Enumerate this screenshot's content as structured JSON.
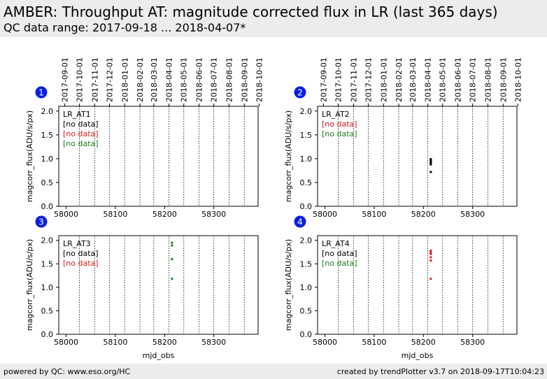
{
  "header": {
    "title": "AMBER: Throughput AT: magnitude corrected flux in LR (last 365 days)",
    "subtitle": "QC data range: 2017-09-18 ... 2018-04-07*"
  },
  "footer": {
    "left": "powered by QC: www.eso.org/HC",
    "right": "created by trendPlotter v3.7 on 2018-09-17T10:04:23"
  },
  "colors": {
    "black": "#000000",
    "red": "#e41a1c",
    "green": "#1a7f1a",
    "badge": "#0a1fe6"
  },
  "chart_data": [
    {
      "type": "scatter",
      "panel": "1",
      "title": "LR_AT1",
      "xlabel": "",
      "ylabel": "magcorr_flux(ADU/s/px)",
      "xlim": [
        57985,
        58390
      ],
      "ylim": [
        0,
        2.1
      ],
      "x_ticks": [
        58000,
        58100,
        58200,
        58300
      ],
      "y_ticks": [
        0.0,
        0.5,
        1.0,
        1.5,
        2.0
      ],
      "date_ticks": [
        "2017-09-01",
        "2017-10-01",
        "2017-11-01",
        "2017-12-01",
        "2018-01-01",
        "2018-02-01",
        "2018-03-01",
        "2018-04-01",
        "2018-05-01",
        "2018-06-01",
        "2018-07-01",
        "2018-08-01",
        "2018-09-01",
        "2018-10-01"
      ],
      "legend": [
        {
          "text": "[no data]",
          "color": "black"
        },
        {
          "text": "[no data]",
          "color": "red"
        },
        {
          "text": "[no data]",
          "color": "green"
        }
      ],
      "series": [],
      "grid": "vertical dotted lines at month boundaries"
    },
    {
      "type": "scatter",
      "panel": "2",
      "title": "LR_AT2",
      "xlabel": "",
      "ylabel": "magcorr_flux(ADU/s/px)",
      "xlim": [
        57985,
        58390
      ],
      "ylim": [
        0,
        2.1
      ],
      "x_ticks": [
        58000,
        58100,
        58200,
        58300
      ],
      "y_ticks": [
        0.0,
        0.5,
        1.0,
        1.5,
        2.0
      ],
      "date_ticks": [
        "2017-09-01",
        "2017-10-01",
        "2017-11-01",
        "2017-12-01",
        "2018-01-01",
        "2018-02-01",
        "2018-03-01",
        "2018-04-01",
        "2018-05-01",
        "2018-06-01",
        "2018-07-01",
        "2018-08-01",
        "2018-09-01",
        "2018-10-01"
      ],
      "legend": [
        {
          "text": "[no data]",
          "color": "red"
        },
        {
          "text": "[no data]",
          "color": "green"
        }
      ],
      "series": [
        {
          "color": "black",
          "x": [
            58215,
            58215,
            58215,
            58215,
            58215,
            58215
          ],
          "y": [
            0.99,
            0.96,
            0.94,
            0.92,
            0.88,
            0.72
          ]
        }
      ],
      "grid": "vertical dotted lines at month boundaries"
    },
    {
      "type": "scatter",
      "panel": "3",
      "title": "LR_AT3",
      "xlabel": "mjd_obs",
      "ylabel": "magcorr_flux(ADU/s/px)",
      "xlim": [
        57985,
        58390
      ],
      "ylim": [
        0,
        2.1
      ],
      "x_ticks": [
        58000,
        58100,
        58200,
        58300
      ],
      "y_ticks": [
        0.0,
        0.5,
        1.0,
        1.5,
        2.0
      ],
      "date_ticks": [],
      "legend": [
        {
          "text": "[no data]",
          "color": "black"
        },
        {
          "text": "[no data]",
          "color": "red"
        }
      ],
      "series": [
        {
          "color": "green",
          "x": [
            58215,
            58215,
            58215,
            58215
          ],
          "y": [
            1.95,
            1.89,
            1.6,
            1.18
          ]
        }
      ],
      "grid": "vertical dotted lines at month boundaries"
    },
    {
      "type": "scatter",
      "panel": "4",
      "title": "LR_AT4",
      "xlabel": "mjd_obs",
      "ylabel": "magcorr_flux(ADU/s/px)",
      "xlim": [
        57985,
        58390
      ],
      "ylim": [
        0,
        2.1
      ],
      "x_ticks": [
        58000,
        58100,
        58200,
        58300
      ],
      "y_ticks": [
        0.0,
        0.5,
        1.0,
        1.5,
        2.0
      ],
      "date_ticks": [],
      "legend": [
        {
          "text": "[no data]",
          "color": "black"
        },
        {
          "text": "[no data]",
          "color": "green"
        }
      ],
      "series": [
        {
          "color": "red",
          "x": [
            58215,
            58215,
            58215,
            58215,
            58215,
            58215
          ],
          "y": [
            1.78,
            1.74,
            1.71,
            1.64,
            1.57,
            1.18
          ]
        }
      ],
      "grid": "vertical dotted lines at month boundaries"
    }
  ]
}
